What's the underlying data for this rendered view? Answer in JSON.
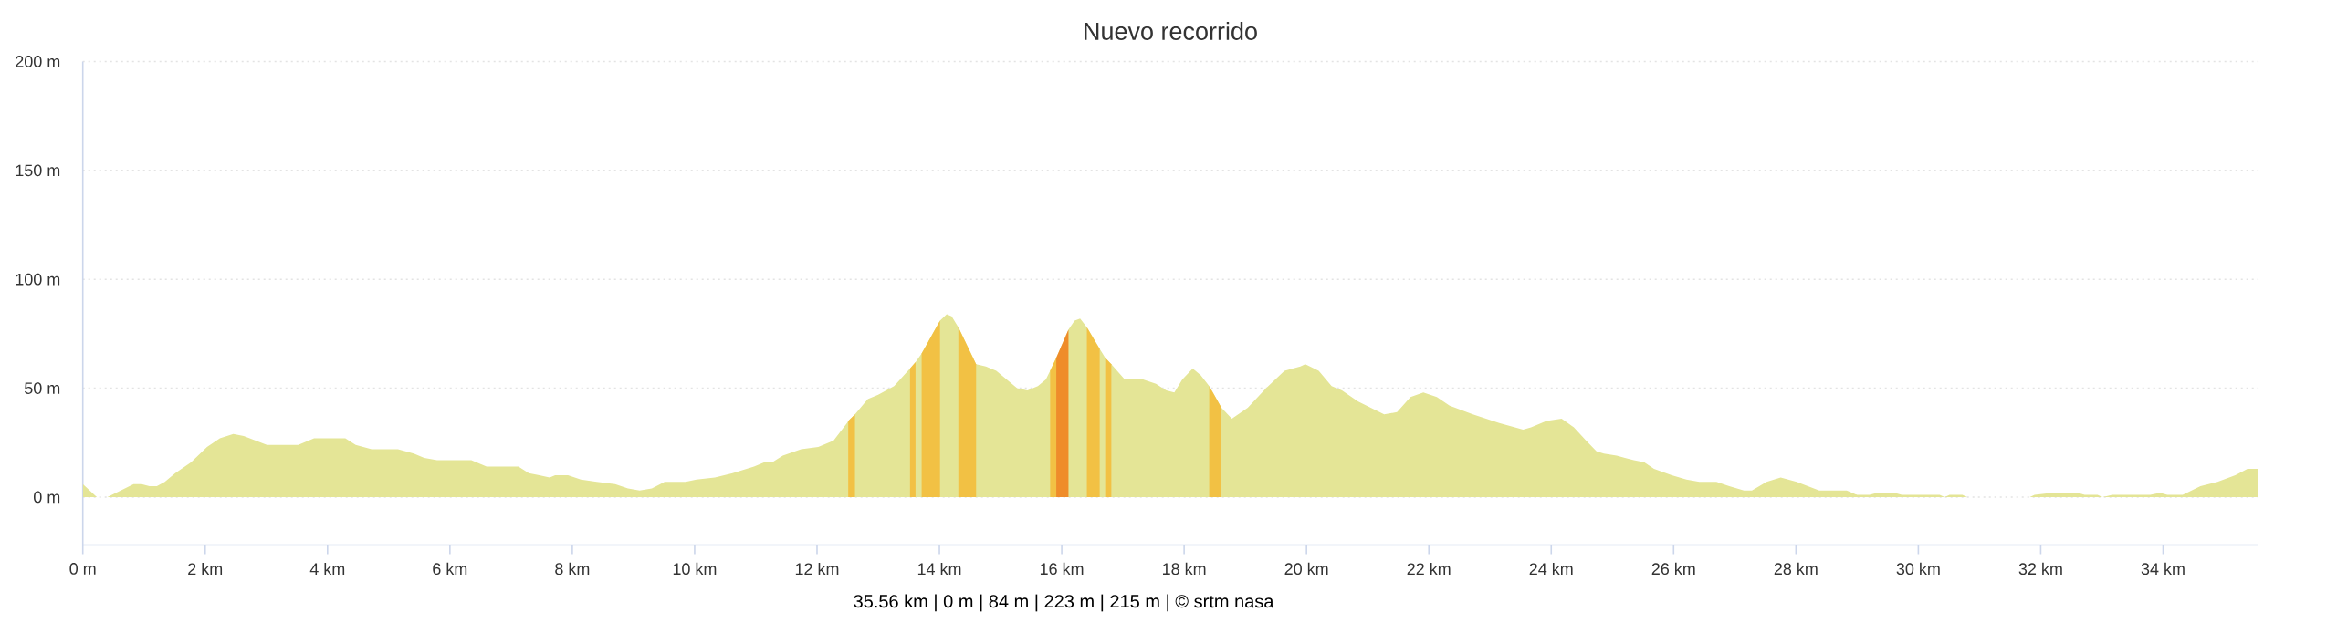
{
  "chart_data": {
    "type": "area",
    "title": "Nuevo recorrido",
    "xlim": [
      0,
      35.56
    ],
    "ylim": [
      -22,
      200
    ],
    "xticks": [
      {
        "value": 0,
        "label": "0 m"
      },
      {
        "value": 2,
        "label": "2 km"
      },
      {
        "value": 4,
        "label": "4 km"
      },
      {
        "value": 6,
        "label": "6 km"
      },
      {
        "value": 8,
        "label": "8 km"
      },
      {
        "value": 10,
        "label": "10 km"
      },
      {
        "value": 12,
        "label": "12 km"
      },
      {
        "value": 14,
        "label": "14 km"
      },
      {
        "value": 16,
        "label": "16 km"
      },
      {
        "value": 18,
        "label": "18 km"
      },
      {
        "value": 20,
        "label": "20 km"
      },
      {
        "value": 22,
        "label": "22 km"
      },
      {
        "value": 24,
        "label": "24 km"
      },
      {
        "value": 26,
        "label": "26 km"
      },
      {
        "value": 28,
        "label": "28 km"
      },
      {
        "value": 30,
        "label": "30 km"
      },
      {
        "value": 32,
        "label": "32 km"
      },
      {
        "value": 34,
        "label": "34 km"
      }
    ],
    "yticks": [
      {
        "value": 0,
        "label": "0 m"
      },
      {
        "value": 50,
        "label": "50 m"
      },
      {
        "value": 100,
        "label": "100 m"
      },
      {
        "value": 150,
        "label": "150 m"
      },
      {
        "value": 200,
        "label": "200 m"
      }
    ],
    "grid": "y",
    "series": [
      {
        "color": "#e4e596",
        "x": [
          0,
          0.23,
          0.4,
          0.62,
          0.83,
          0.96,
          1.09,
          1.21,
          1.34,
          1.51,
          1.77,
          2.03,
          2.24,
          2.46,
          2.63,
          3.01,
          3.52,
          3.78,
          4.29,
          4.46,
          4.72,
          5.15,
          5.41,
          5.58,
          5.79,
          6.35,
          6.6,
          7.12,
          7.29,
          7.46,
          7.63,
          7.72,
          7.93,
          8.14,
          8.4,
          8.7,
          8.91,
          9.1,
          9.3,
          9.51,
          9.85,
          10.03,
          10.33,
          10.62,
          10.97,
          11.14,
          11.27,
          11.44,
          11.74,
          12.02,
          12.27,
          12.49,
          12.51,
          12.62,
          12.83,
          13.0,
          13.26,
          13.52,
          13.61,
          13.71,
          14.01,
          14.12,
          14.2,
          14.31,
          14.6,
          14.76,
          14.93,
          15.1,
          15.27,
          15.44,
          15.61,
          15.74,
          15.81,
          15.91,
          16.11,
          16.21,
          16.3,
          16.41,
          16.62,
          16.71,
          16.81,
          17.03,
          17.33,
          17.54,
          17.71,
          17.84,
          17.97,
          18.14,
          18.27,
          18.41,
          18.61,
          18.78,
          19.04,
          19.34,
          19.64,
          19.9,
          19.98,
          20.2,
          20.41,
          20.58,
          20.84,
          21.05,
          21.27,
          21.48,
          21.7,
          21.91,
          22.13,
          22.34,
          22.72,
          23.15,
          23.54,
          23.67,
          23.92,
          24.17,
          24.37,
          24.57,
          24.74,
          24.86,
          25.07,
          25.35,
          25.52,
          25.68,
          25.97,
          26.21,
          26.42,
          26.7,
          26.91,
          27.15,
          27.28,
          27.52,
          27.75,
          28.01,
          28.38,
          28.83,
          29.0,
          29.2,
          29.33,
          29.61,
          29.73,
          30.35,
          30.43,
          30.51,
          30.72,
          30.8,
          31.82,
          31.9,
          32.19,
          32.6,
          32.72,
          32.93,
          33.01,
          33.17,
          33.79,
          33.95,
          34.07,
          34.32,
          34.61,
          34.89,
          35.18,
          35.38,
          35.56
        ],
        "values": [
          6,
          0,
          0,
          3,
          6,
          6,
          5,
          5,
          7,
          11,
          16,
          23,
          27,
          29,
          28,
          24,
          24,
          27,
          27,
          24,
          22,
          22,
          20,
          18,
          17,
          17,
          14,
          14,
          11,
          10,
          9,
          10,
          10,
          8,
          7,
          6,
          4,
          3,
          4,
          7,
          7,
          8,
          9,
          11,
          14,
          16,
          16,
          19,
          22,
          23,
          26,
          34,
          35,
          38,
          45,
          47,
          51,
          59,
          62,
          66,
          81,
          84,
          83,
          78,
          61,
          60,
          58,
          54,
          50,
          49,
          51,
          54,
          58,
          64,
          77,
          81,
          82,
          78,
          68,
          64,
          61,
          54,
          54,
          52,
          49,
          48,
          54,
          59,
          56,
          51,
          41,
          36,
          41,
          50,
          58,
          60,
          61,
          58,
          51,
          49,
          44,
          41,
          38,
          39,
          46,
          48,
          46,
          42,
          38,
          34,
          31,
          32,
          35,
          36,
          32,
          26,
          21,
          20,
          19,
          17,
          16,
          13,
          10,
          8,
          7,
          7,
          5,
          3,
          3,
          7,
          9,
          7,
          3,
          3,
          1,
          1,
          2,
          2,
          1,
          1,
          0,
          1,
          1,
          0,
          0,
          1,
          2,
          2,
          1,
          1,
          0,
          1,
          1,
          2,
          1,
          1,
          5,
          7,
          10,
          13,
          13
        ]
      },
      {
        "color": "#f2c144",
        "x": [
          12.51,
          12.62
        ],
        "values": [
          35,
          38
        ]
      },
      {
        "color": "#f2c144",
        "x": [
          13.52,
          13.61
        ],
        "values": [
          59,
          62
        ]
      },
      {
        "color": "#f2c144",
        "x": [
          13.71,
          14.01
        ],
        "values": [
          66,
          81
        ]
      },
      {
        "color": "#f2c144",
        "x": [
          14.31,
          14.6
        ],
        "values": [
          78,
          61
        ]
      },
      {
        "color": "#f2c144",
        "x": [
          15.81,
          15.91
        ],
        "values": [
          58,
          64
        ]
      },
      {
        "color": "#ef8c2a",
        "x": [
          15.91,
          16.11
        ],
        "values": [
          64,
          77
        ]
      },
      {
        "color": "#f2c144",
        "x": [
          16.41,
          16.62,
          16.66,
          16.71,
          16.81
        ],
        "values": [
          78,
          68,
          null,
          64,
          61
        ]
      },
      {
        "color": "#f2c144",
        "x": [
          18.41,
          18.61
        ],
        "values": [
          51,
          41
        ]
      }
    ],
    "annotations": [
      "35.56 km | 0 m | 84 m | 223 m | 215 m | © srtm nasa"
    ]
  }
}
